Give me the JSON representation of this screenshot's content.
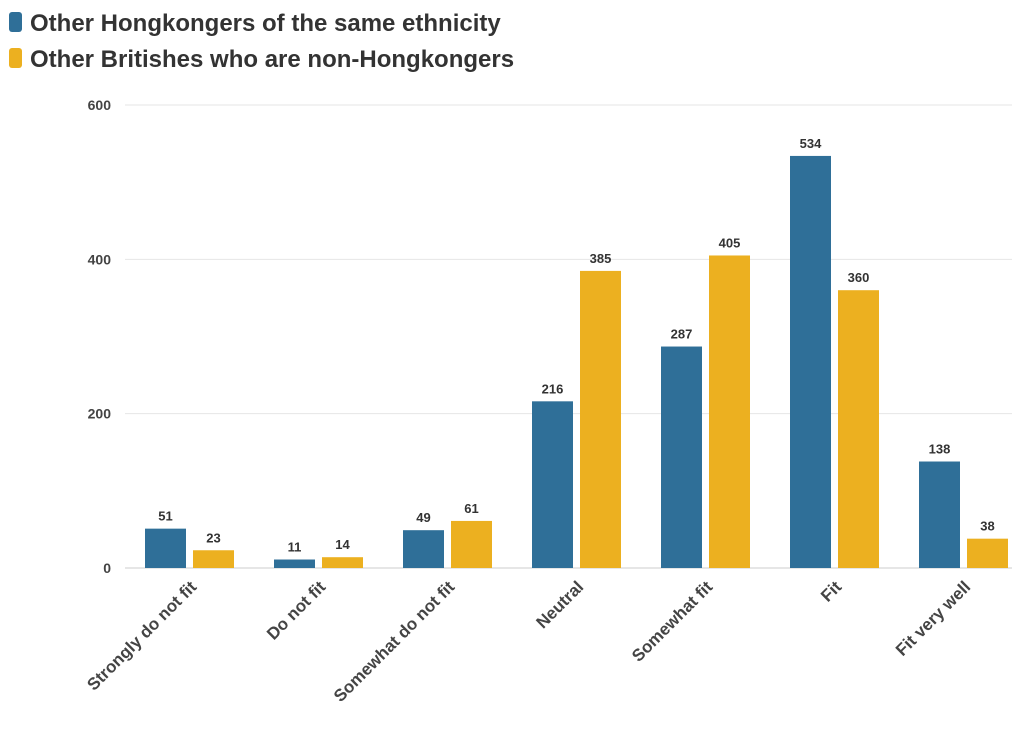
{
  "chart_data": {
    "type": "bar",
    "categories": [
      "Strongly do not fit",
      "Do not fit",
      "Somewhat do not fit",
      "Neutral",
      "Somewhat fit",
      "Fit",
      "Fit very well"
    ],
    "series": [
      {
        "name": "Other Hongkongers of the same ethnicity",
        "color": "#2f6f98",
        "values": [
          51,
          11,
          49,
          216,
          287,
          534,
          138
        ]
      },
      {
        "name": "Other Britishes who are non-Hongkongers",
        "color": "#ecb020",
        "values": [
          23,
          14,
          61,
          385,
          405,
          360,
          38
        ]
      }
    ],
    "ylim": [
      0,
      600
    ],
    "yticks": [
      0,
      200,
      400,
      600
    ],
    "grid": true,
    "legend_position": "top-left",
    "data_labels": true
  }
}
